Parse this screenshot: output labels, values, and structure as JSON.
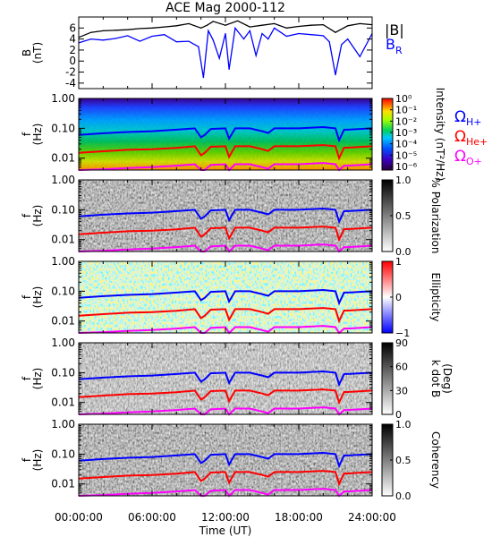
{
  "title": "ACE Mag 2000-112",
  "xaxis": {
    "label": "Time (UT)",
    "ticks": [
      "00:00:00",
      "06:00:00",
      "12:00:00",
      "18:00:00",
      "24:00:00"
    ],
    "range_hours": [
      0,
      24
    ]
  },
  "colors": {
    "B_total": "#000000",
    "B_R": "#0000ff",
    "omega_H": "#0000ff",
    "omega_He": "#ff0000",
    "omega_O": "#ff00ff"
  },
  "gyro_legend": {
    "omega_H": "Ω",
    "omega_H_sub": "H+",
    "omega_He": "Ω",
    "omega_He_sub": "He+",
    "omega_O": "Ω",
    "omega_O_sub": "O+"
  },
  "chart_data": [
    {
      "type": "line",
      "panel": "magnetic-field",
      "ylabel": "B",
      "yunit": "(nT)",
      "ylim": [
        -5,
        8
      ],
      "yticks": [
        "6",
        "4",
        "2",
        "0",
        "-2",
        "-4"
      ],
      "legend": [
        "|B|",
        "B"
      ],
      "legend_sub": [
        "",
        "R"
      ],
      "series": [
        {
          "name": "|B|",
          "x": [
            0,
            1,
            2,
            3,
            4,
            5,
            6,
            7,
            8,
            9,
            10,
            10.5,
            11,
            12,
            13,
            14,
            15,
            16,
            17,
            18,
            19,
            20,
            21,
            22,
            23,
            24
          ],
          "y": [
            4.3,
            5.2,
            5.5,
            5.6,
            5.7,
            5.9,
            6.0,
            6.2,
            6.4,
            6.8,
            6.0,
            6.5,
            7.2,
            6.5,
            7.3,
            6.2,
            6.5,
            6.8,
            6.0,
            6.3,
            6.5,
            6.6,
            5.2,
            6.4,
            6.8,
            6.6
          ]
        },
        {
          "name": "B_R",
          "x": [
            0,
            1,
            2,
            3,
            4,
            5,
            6,
            7,
            8,
            9,
            9.8,
            10.2,
            10.6,
            11,
            11.5,
            12,
            12.3,
            12.8,
            13.5,
            14,
            14.5,
            15,
            15.5,
            16,
            17,
            18,
            19,
            20,
            20.5,
            21,
            21.5,
            22,
            23,
            24
          ],
          "y": [
            3.3,
            4.0,
            3.8,
            4.1,
            4.6,
            3.6,
            4.5,
            4.8,
            3.5,
            3.6,
            2.6,
            -3.0,
            5.5,
            3.8,
            0.5,
            5.0,
            -1.5,
            6.0,
            4.0,
            5.5,
            1.0,
            5.0,
            4.0,
            6.0,
            4.5,
            5.0,
            4.8,
            4.6,
            3.5,
            -2.5,
            3.0,
            4.0,
            0.8,
            5.0
          ]
        }
      ]
    },
    {
      "type": "heatmap",
      "panel": "intensity",
      "ylabel": "f",
      "yunit": "(Hz)",
      "yscale": "log",
      "ylim": [
        0.004,
        1.0
      ],
      "yticks": [
        "1.00",
        "0.10",
        "0.01"
      ],
      "colorbar_label": "Intensity (nT²/Hz)",
      "colorbar_ticks": [
        "10⁰",
        "10⁻¹",
        "10⁻²",
        "10⁻³",
        "10⁻⁴",
        "10⁻⁵",
        "10⁻⁶"
      ],
      "colorscale": "rainbow",
      "gyrofrequency_overlays": true
    },
    {
      "type": "heatmap",
      "panel": "polarization",
      "ylabel": "f",
      "yunit": "(Hz)",
      "yscale": "log",
      "ylim": [
        0.004,
        1.0
      ],
      "yticks": [
        "1.00",
        "0.10",
        "0.01"
      ],
      "colorbar_label": "% Polarization",
      "colorbar_ticks": [
        "1.0",
        "0.5",
        "0.0"
      ],
      "colorscale": "gray",
      "gyrofrequency_overlays": true
    },
    {
      "type": "heatmap",
      "panel": "ellipticity",
      "ylabel": "f",
      "yunit": "(Hz)",
      "yscale": "log",
      "ylim": [
        0.004,
        1.0
      ],
      "yticks": [
        "1.00",
        "0.10",
        "0.01"
      ],
      "colorbar_label": "Ellipticity",
      "colorbar_ticks": [
        "1",
        "0",
        "−1"
      ],
      "colorscale": "blue-white-red",
      "gyrofrequency_overlays": true
    },
    {
      "type": "heatmap",
      "panel": "k-dot-b",
      "ylabel": "f",
      "yunit": "(Hz)",
      "yscale": "log",
      "ylim": [
        0.004,
        1.0
      ],
      "yticks": [
        "1.00",
        "0.10",
        "0.01"
      ],
      "colorbar_label": "k dot B",
      "colorbar_unit": "(Deg)",
      "colorbar_ticks": [
        "90",
        "60",
        "30",
        "0"
      ],
      "colorscale": "gray",
      "gyrofrequency_overlays": true
    },
    {
      "type": "heatmap",
      "panel": "coherency",
      "ylabel": "f",
      "yunit": "(Hz)",
      "yscale": "log",
      "ylim": [
        0.004,
        1.0
      ],
      "yticks": [
        "1.00",
        "0.10",
        "0.01"
      ],
      "colorbar_label": "Coherency",
      "colorbar_ticks": [
        "1.0",
        "0.5",
        "0.0"
      ],
      "colorscale": "gray",
      "gyrofrequency_overlays": true
    },
    {
      "type": "line",
      "panel": "gyrofrequency-curves",
      "series": [
        {
          "name": "Ω H+",
          "x": [
            0,
            2,
            4,
            6,
            8,
            9.5,
            10,
            10.3,
            10.8,
            12,
            12.3,
            12.8,
            14,
            15,
            15.5,
            16,
            18,
            20,
            21,
            21.3,
            21.7,
            22,
            24
          ],
          "y": [
            0.06,
            0.068,
            0.075,
            0.08,
            0.09,
            0.1,
            0.05,
            0.06,
            0.095,
            0.1,
            0.045,
            0.1,
            0.1,
            0.08,
            0.07,
            0.1,
            0.1,
            0.11,
            0.1,
            0.04,
            0.09,
            0.09,
            0.1
          ]
        },
        {
          "name": "Ω He+",
          "x": [
            0,
            2,
            4,
            6,
            8,
            9.5,
            10,
            10.3,
            10.8,
            12,
            12.3,
            12.8,
            14,
            15,
            15.5,
            16,
            18,
            20,
            21,
            21.3,
            21.7,
            22,
            24
          ],
          "y": [
            0.015,
            0.017,
            0.019,
            0.02,
            0.022,
            0.025,
            0.0125,
            0.015,
            0.024,
            0.025,
            0.011,
            0.025,
            0.025,
            0.02,
            0.0175,
            0.025,
            0.025,
            0.0275,
            0.025,
            0.01,
            0.0225,
            0.0225,
            0.025
          ]
        },
        {
          "name": "Ω O+",
          "x": [
            0,
            2,
            4,
            6,
            8,
            9.5,
            10,
            10.3,
            10.8,
            12,
            12.3,
            12.8,
            14,
            15,
            15.5,
            16,
            18,
            20,
            21,
            21.3,
            21.7,
            22,
            24
          ],
          "y": [
            0.00375,
            0.00425,
            0.0047,
            0.005,
            0.0056,
            0.00625,
            0.0031,
            0.00375,
            0.0059,
            0.00625,
            0.0028,
            0.00625,
            0.00625,
            0.005,
            0.0044,
            0.00625,
            0.00625,
            0.0069,
            0.00625,
            0.0025,
            0.0056,
            0.0056,
            0.00625
          ]
        }
      ]
    }
  ]
}
